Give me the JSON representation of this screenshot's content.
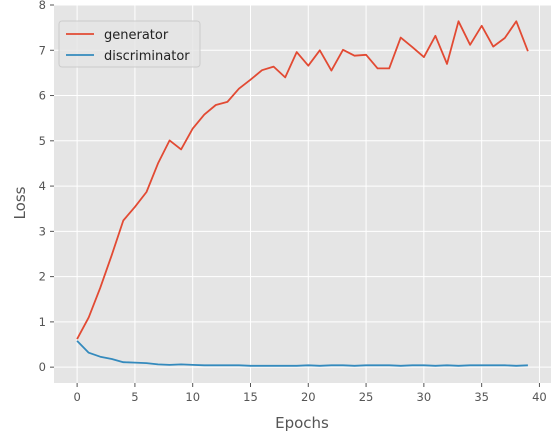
{
  "chart_data": {
    "type": "line",
    "title": "",
    "xlabel": "Epochs",
    "ylabel": "Loss",
    "xlim": [
      -2,
      41
    ],
    "ylim": [
      -0.35,
      8
    ],
    "xticks": [
      0,
      5,
      10,
      15,
      20,
      25,
      30,
      35,
      40
    ],
    "yticks": [
      0,
      1,
      2,
      3,
      4,
      5,
      6,
      7,
      8
    ],
    "grid": true,
    "legend_position": "upper-left",
    "background_color": "#e5e5e5",
    "x": [
      0,
      1,
      2,
      3,
      4,
      5,
      6,
      7,
      8,
      9,
      10,
      11,
      12,
      13,
      14,
      15,
      16,
      17,
      18,
      19,
      20,
      21,
      22,
      23,
      24,
      25,
      26,
      27,
      28,
      29,
      30,
      31,
      32,
      33,
      34,
      35,
      36,
      37,
      38,
      39
    ],
    "series": [
      {
        "name": "generator",
        "color": "#e24a33",
        "values": [
          0.62,
          1.1,
          1.75,
          2.48,
          3.24,
          3.54,
          3.87,
          4.5,
          5.01,
          4.81,
          5.27,
          5.58,
          5.79,
          5.86,
          6.15,
          6.35,
          6.56,
          6.64,
          6.4,
          6.96,
          6.66,
          7.0,
          6.55,
          7.01,
          6.88,
          6.9,
          6.6,
          6.6,
          7.28,
          7.07,
          6.85,
          7.32,
          6.7,
          7.64,
          7.12,
          7.54,
          7.08,
          7.27,
          7.64,
          6.98
        ]
      },
      {
        "name": "discriminator",
        "color": "#348abd",
        "values": [
          0.58,
          0.32,
          0.23,
          0.18,
          0.11,
          0.1,
          0.09,
          0.06,
          0.05,
          0.06,
          0.05,
          0.04,
          0.04,
          0.04,
          0.04,
          0.03,
          0.03,
          0.03,
          0.03,
          0.03,
          0.04,
          0.03,
          0.04,
          0.04,
          0.03,
          0.04,
          0.04,
          0.04,
          0.03,
          0.04,
          0.04,
          0.03,
          0.04,
          0.03,
          0.04,
          0.04,
          0.04,
          0.04,
          0.03,
          0.04
        ]
      }
    ]
  }
}
